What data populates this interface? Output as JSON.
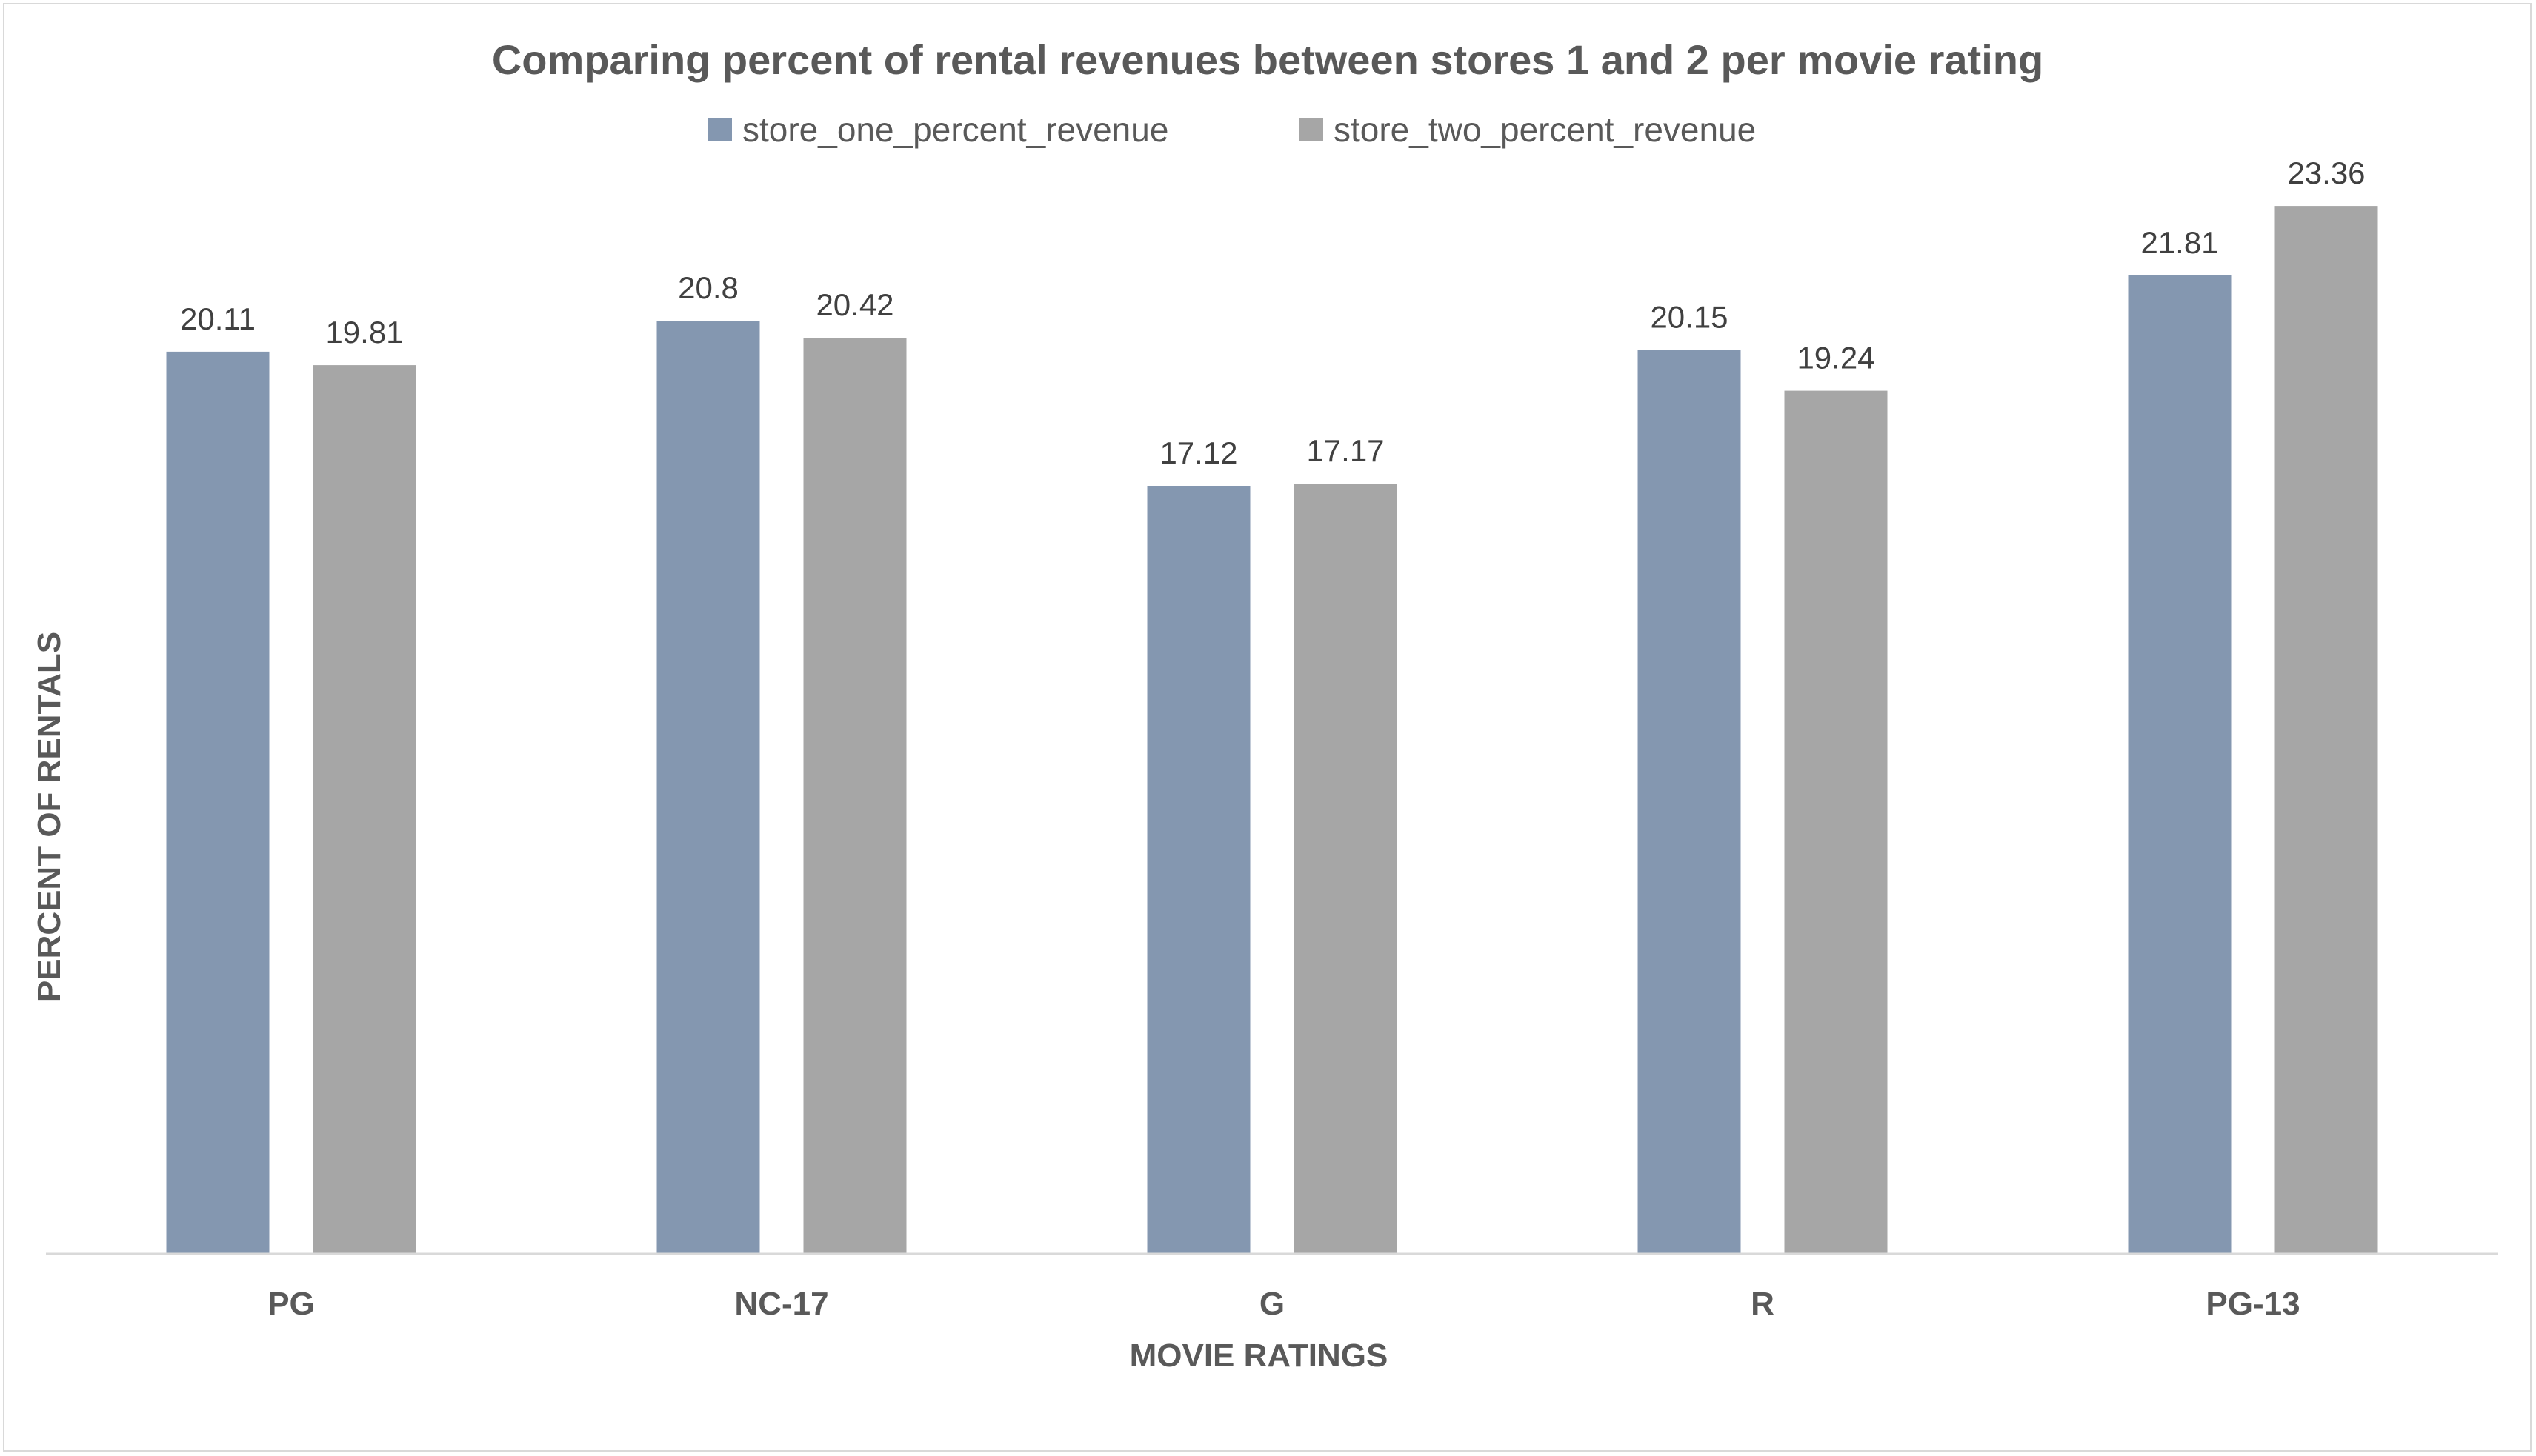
{
  "chart_data": {
    "type": "bar",
    "title": "Comparing percent of rental revenues between stores 1 and 2 per movie rating",
    "xlabel": "MOVIE RATINGS",
    "ylabel": "PERCENT OF RENTALS",
    "categories": [
      "PG",
      "NC-17",
      "G",
      "R",
      "PG-13"
    ],
    "series": [
      {
        "name": "store_one_percent_revenue",
        "color": "#8497b0",
        "values": [
          20.11,
          20.8,
          17.12,
          20.15,
          21.81
        ],
        "labels": [
          "20.11",
          "20.8",
          "17.12",
          "20.15",
          "21.81"
        ]
      },
      {
        "name": "store_two_percent_revenue",
        "color": "#a6a6a6",
        "values": [
          19.81,
          20.42,
          17.17,
          19.24,
          23.36
        ],
        "labels": [
          "19.81",
          "20.42",
          "17.17",
          "19.24",
          "23.36"
        ]
      }
    ],
    "ylim": [
      0,
      25
    ],
    "grid": false,
    "legend_position": "top"
  }
}
